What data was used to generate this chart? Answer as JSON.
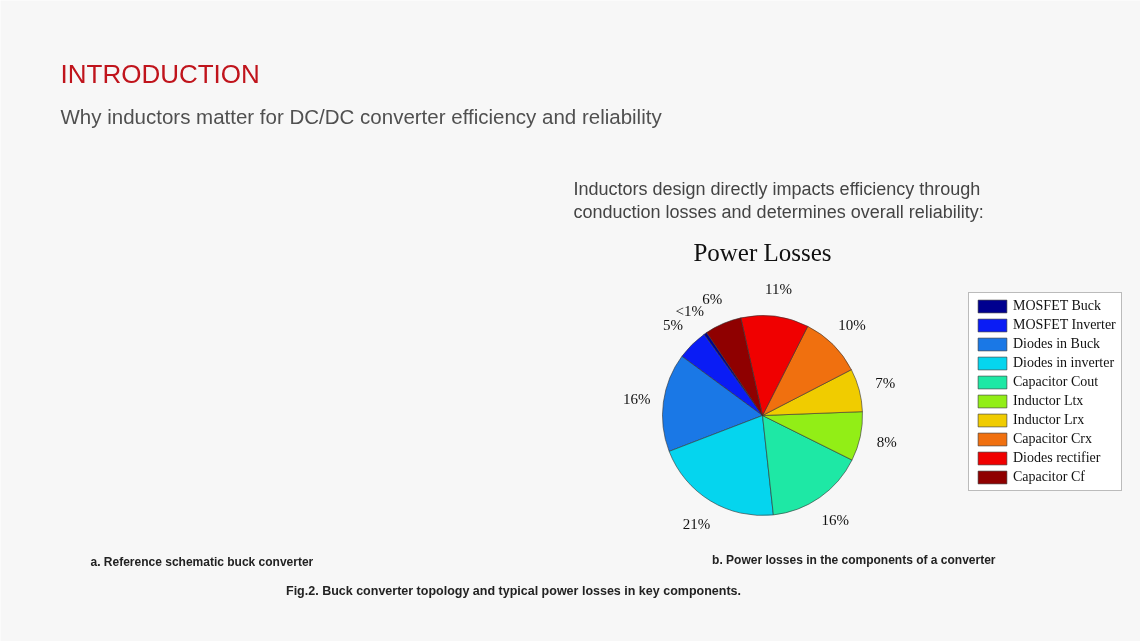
{
  "chart_data": {
    "type": "pie",
    "title": "Power Losses",
    "categories": [
      "MOSFET Buck",
      "MOSFET Inverter",
      "Diodes in Buck",
      "Diodes in inverter",
      "Capacitor Cout",
      "Inductor Ltx",
      "Inductor Lrx",
      "Capacitor Crx",
      "Diodes rectifier",
      "Capacitor Cf"
    ],
    "values": [
      0.5,
      5,
      16,
      21,
      16,
      8,
      7,
      10,
      11,
      6
    ],
    "value_labels": [
      "<1%",
      "5%",
      "16%",
      "21%",
      "16%",
      "8%",
      "7%",
      "10%",
      "11%",
      "6%"
    ],
    "colors": [
      "#00008f",
      "#0a1cf5",
      "#1a78e6",
      "#05d5ee",
      "#1ee8a5",
      "#92ee16",
      "#f0cc00",
      "#f0700f",
      "#f00000",
      "#8f0000"
    ],
    "legend": "right",
    "annotations": [
      "INTRODUCTION",
      "Why inductors matter for DC/DC converter efficiency and reliability",
      "Inductors design directly impacts efficiency through conduction losses and determines overall reliability:",
      "a. Reference schematic buck converter",
      "b. Power losses in the components of a converter",
      "Fig.2. Buck converter topology and typical power losses in key components."
    ]
  }
}
